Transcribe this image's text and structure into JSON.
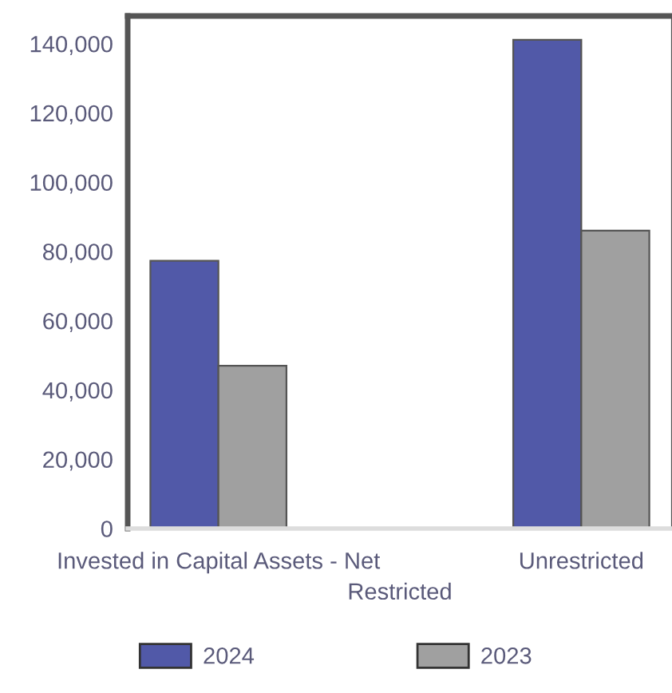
{
  "chart_data": {
    "type": "bar",
    "categories": [
      "Invested in Capital Assets - Net",
      "Restricted",
      "Unrestricted"
    ],
    "series": [
      {
        "name": "2024",
        "color": "#5159a8",
        "values": [
          77300,
          0,
          141100
        ]
      },
      {
        "name": "2023",
        "color": "#a0a0a0",
        "values": [
          47000,
          0,
          86000
        ]
      }
    ],
    "ylim": [
      0,
      148000
    ],
    "yticks": [
      {
        "value": 0,
        "label": "0"
      },
      {
        "value": 20000,
        "label": "20,000"
      },
      {
        "value": 40000,
        "label": "40,000"
      },
      {
        "value": 60000,
        "label": "60,000"
      },
      {
        "value": 80000,
        "label": "80,000"
      },
      {
        "value": 100000,
        "label": "100,000"
      },
      {
        "value": 120000,
        "label": "120,000"
      },
      {
        "value": 140000,
        "label": "140,000"
      }
    ],
    "grid": false,
    "legend": "bottom"
  }
}
